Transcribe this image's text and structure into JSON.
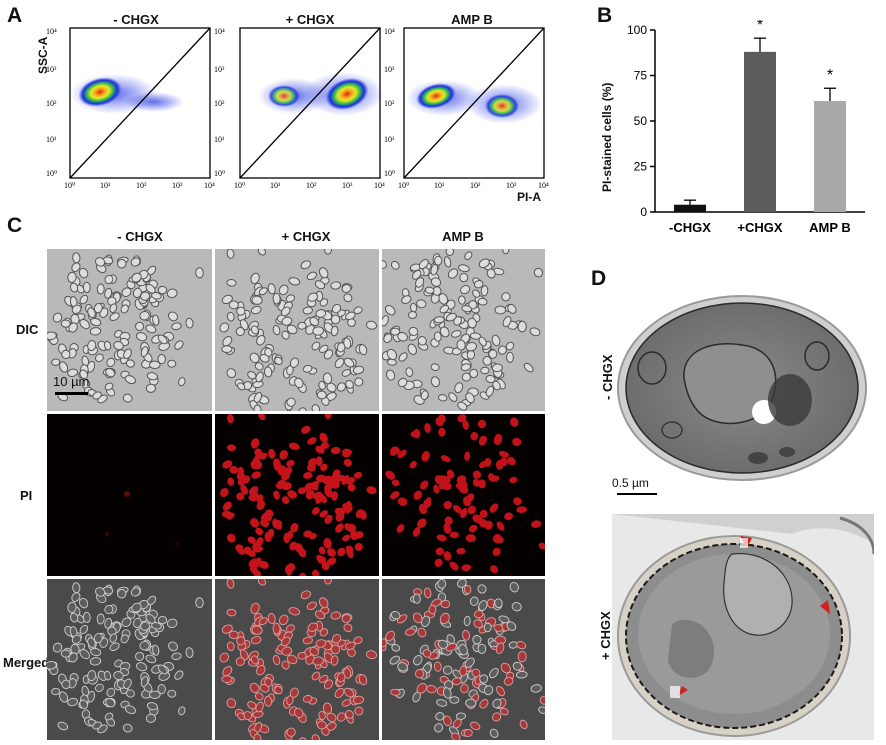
{
  "panels": {
    "A": "A",
    "B": "B",
    "C": "C",
    "D": "D"
  },
  "panel_a": {
    "titles": [
      "- CHGX",
      "+ CHGX",
      "AMP B"
    ],
    "y_label": "SSC-A",
    "x_label": "PI-A",
    "y_ticks": [
      "10⁴",
      "10³",
      "10²",
      "10¹",
      "10⁰"
    ],
    "x_ticks": [
      "10⁰",
      "10¹",
      "10²",
      "10³",
      "10⁴"
    ]
  },
  "chart_data": {
    "type": "bar",
    "categories": [
      "-CHGX",
      "+CHGX",
      "AMP B"
    ],
    "values": [
      4,
      88,
      61
    ],
    "errors": [
      2.5,
      7.5,
      7
    ],
    "significance": [
      "",
      "*",
      "*"
    ],
    "colors": [
      "#111111",
      "#5b5b5b",
      "#a9a9a9"
    ],
    "ylabel": "PI-stained cells (%)",
    "ylim": [
      0,
      100
    ],
    "yticks": [
      0,
      25,
      50,
      75,
      100
    ]
  },
  "panel_c": {
    "columns": [
      "- CHGX",
      "+ CHGX",
      "AMP B"
    ],
    "rows": [
      "DIC",
      "PI",
      "Merged"
    ],
    "scale_label": "10 µm"
  },
  "panel_d": {
    "rows": [
      "- CHGX",
      "+ CHGX"
    ],
    "scale_label": "0.5 µm"
  }
}
